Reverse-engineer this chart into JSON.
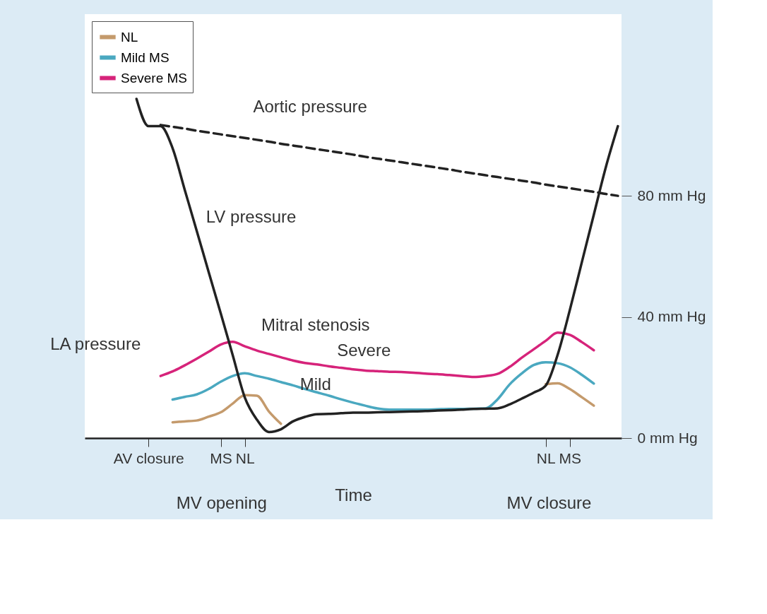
{
  "chart_data": {
    "type": "line",
    "xlabel": "Time",
    "legend": "top left",
    "grid": false,
    "categories": [
      null,
      null,
      null,
      null,
      null,
      "AV closure",
      null,
      null,
      null,
      null,
      null,
      "MS",
      null,
      "NL",
      null,
      null,
      null,
      null,
      null,
      null,
      null,
      null,
      null,
      null,
      null,
      null,
      null,
      null,
      null,
      null,
      null,
      null,
      null,
      null,
      null,
      null,
      null,
      null,
      "NL",
      null,
      "MS",
      null,
      null,
      null,
      null
    ],
    "ylim": [
      0,
      140
    ],
    "yticks": [
      {
        "value": 0,
        "label": "0 mm Hg"
      },
      {
        "value": 40,
        "label": "40 mm Hg"
      },
      {
        "value": 80,
        "label": "80 mm Hg"
      }
    ],
    "series": [
      {
        "name": "NL",
        "color": "#c49a6c",
        "values": [
          null,
          null,
          null,
          null,
          null,
          null,
          null,
          5.2,
          5.5,
          5.8,
          7.1,
          8.5,
          11.4,
          14.2,
          14.0,
          8.8,
          4.7,
          null,
          null,
          null,
          null,
          null,
          null,
          null,
          null,
          null,
          null,
          null,
          null,
          null,
          null,
          null,
          null,
          null,
          null,
          null,
          null,
          null,
          17.8,
          18.1,
          16.2,
          13.5,
          10.7,
          null,
          null
        ]
      },
      {
        "name": "Mild MS",
        "color": "#4aa8c0",
        "values": [
          null,
          null,
          null,
          null,
          null,
          null,
          null,
          12.7,
          13.6,
          14.4,
          16.2,
          18.6,
          20.5,
          21.4,
          20.5,
          19.6,
          18.5,
          17.4,
          16.2,
          15.1,
          14.0,
          12.8,
          11.7,
          10.7,
          9.8,
          9.4,
          9.4,
          9.4,
          9.4,
          9.5,
          9.6,
          9.6,
          9.7,
          9.8,
          12.8,
          17.7,
          21.3,
          24.1,
          25.0,
          24.7,
          23.4,
          20.9,
          18.0,
          null,
          null
        ]
      },
      {
        "name": "Severe MS",
        "color": "#d6237a",
        "values": [
          null,
          null,
          null,
          null,
          null,
          null,
          20.5,
          22.0,
          24.0,
          26.2,
          28.5,
          30.9,
          31.8,
          30.3,
          28.9,
          27.8,
          26.7,
          25.6,
          24.8,
          24.3,
          23.7,
          23.2,
          22.7,
          22.3,
          22.1,
          21.9,
          21.8,
          21.6,
          21.3,
          21.1,
          20.8,
          20.5,
          20.2,
          20.5,
          21.2,
          23.5,
          26.5,
          29.3,
          32.1,
          34.8,
          34.1,
          31.7,
          29.0,
          null,
          null
        ]
      },
      {
        "color": "#222222",
        "line_style": "dashed",
        "values": [
          null,
          null,
          null,
          null,
          null,
          null,
          103.4,
          102.8,
          102.2,
          101.5,
          100.9,
          100.3,
          99.7,
          99.1,
          98.5,
          97.9,
          97.2,
          96.6,
          96.0,
          95.4,
          94.8,
          94.2,
          93.6,
          92.9,
          92.3,
          91.7,
          91.1,
          90.5,
          89.9,
          89.3,
          88.7,
          88.0,
          87.4,
          86.8,
          86.2,
          85.6,
          85.0,
          84.4,
          83.7,
          83.1,
          82.5,
          81.9,
          81.3,
          80.6,
          80.0
        ]
      },
      {
        "color": "#222222",
        "line_style": "solid",
        "values": [
          null,
          null,
          null,
          null,
          112,
          103,
          103,
          95.7,
          82.1,
          68.5,
          54.8,
          41.2,
          27.3,
          13.4,
          6.1,
          2.0,
          2.9,
          5.5,
          7.0,
          7.9,
          8.0,
          8.2,
          8.4,
          8.4,
          8.5,
          8.6,
          8.7,
          8.8,
          8.9,
          9.1,
          9.2,
          9.4,
          9.6,
          9.7,
          9.8,
          11.1,
          13.0,
          15.0,
          17.3,
          27.6,
          42.2,
          58.0,
          73.8,
          89.5,
          103
        ]
      }
    ],
    "annotations": [
      "Aortic pressure",
      "LV pressure",
      "Mitral stenosis",
      "Severe",
      "Mild",
      "LA pressure",
      "MV opening",
      "MV closure"
    ]
  }
}
